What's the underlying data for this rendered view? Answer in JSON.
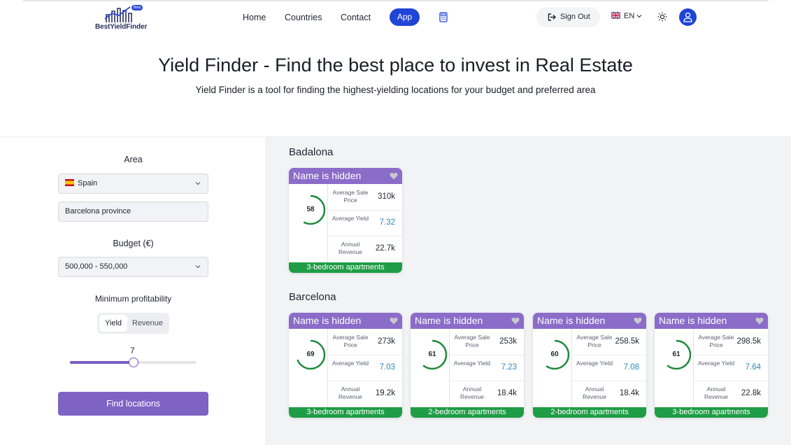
{
  "header": {
    "logo_text": "BestYieldFinder",
    "beta_badge": "Beta",
    "nav": [
      {
        "label": "Home"
      },
      {
        "label": "Countries"
      },
      {
        "label": "Contact"
      },
      {
        "label": "App"
      }
    ],
    "sign_out_label": "Sign Out",
    "language": "EN",
    "accent_color": "#1f44d6"
  },
  "hero": {
    "title": "Yield Finder - Find the best place to invest in Real Estate",
    "subtitle": "Yield Finder is a tool for finding the highest-yielding locations for your budget and preferred area"
  },
  "filters": {
    "area_label": "Area",
    "country": "Spain",
    "province": "Barcelona province",
    "budget_label": "Budget (€)",
    "budget": "500,000 - 550,000",
    "min_profit_label": "Minimum profitability",
    "toggle_options": [
      "Yield",
      "Revenue"
    ],
    "toggle_selected": "Yield",
    "slider_value": "7",
    "slider_fraction": 0.5,
    "find_button": "Find locations",
    "button_color": "#7e62c4"
  },
  "results": {
    "stat_labels": {
      "sale_price": "Average Sale Price",
      "yield": "Average Yield",
      "revenue": "Annual Revenue"
    },
    "groups": [
      {
        "name": "Badalona",
        "cards": [
          {
            "title": "Name is hidden",
            "score": "58",
            "score_fraction": 0.58,
            "sale_price": "310k",
            "yield": "7.32",
            "revenue": "22.7k",
            "type": "3-bedroom apartments"
          }
        ]
      },
      {
        "name": "Barcelona",
        "cards": [
          {
            "title": "Name is hidden",
            "score": "69",
            "score_fraction": 0.69,
            "sale_price": "273k",
            "yield": "7.03",
            "revenue": "19.2k",
            "type": "3-bedroom apartments"
          },
          {
            "title": "Name is hidden",
            "score": "61",
            "score_fraction": 0.61,
            "sale_price": "253k",
            "yield": "7.23",
            "revenue": "18.4k",
            "type": "2-bedroom apartments"
          },
          {
            "title": "Name is hidden",
            "score": "60",
            "score_fraction": 0.6,
            "sale_price": "258.5k",
            "yield": "7.08",
            "revenue": "18.4k",
            "type": "2-bedroom apartments"
          },
          {
            "title": "Name is hidden",
            "score": "61",
            "score_fraction": 0.61,
            "sale_price": "298.5k",
            "yield": "7.64",
            "revenue": "22.8k",
            "type": "3-bedroom apartments"
          }
        ]
      }
    ],
    "colors": {
      "card_header": "#8b6cc9",
      "card_footer": "#1f9d46",
      "score_ring": "#1f8a3c",
      "yield_value": "#2a8bb8"
    }
  }
}
